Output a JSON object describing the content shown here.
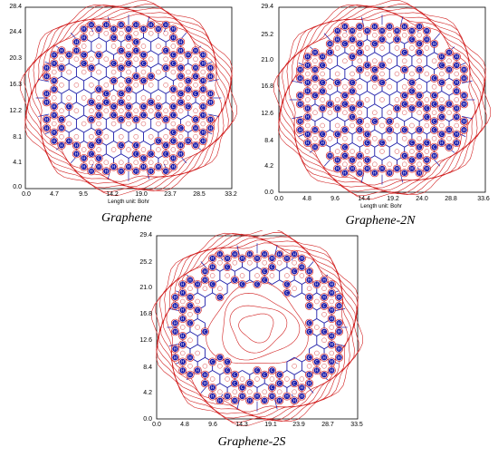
{
  "length_unit": "Length unit: Bohr",
  "atom_labels": {
    "carbon": "C",
    "hydrogen": "H",
    "nitrogen": "N",
    "sulfur": "S"
  },
  "colors": {
    "contour": "#d22020",
    "bond_path": "#1b1ba8",
    "atom_marker": "#1b1ba8",
    "atom_fill": "#ffffff"
  },
  "panels": [
    {
      "caption": "Graphene",
      "x_ticks": [
        "0.0",
        "4.7",
        "9.5",
        "14.2",
        "19.0",
        "23.7",
        "28.5",
        "33.2"
      ],
      "y_ticks": [
        "28.4",
        "24.4",
        "20.3",
        "16.3",
        "12.2",
        "8.1",
        "4.1",
        "0.0"
      ]
    },
    {
      "caption": "Graphene-2N",
      "x_ticks": [
        "0.0",
        "4.8",
        "9.6",
        "14.4",
        "19.2",
        "24.0",
        "28.8",
        "33.6"
      ],
      "y_ticks": [
        "29.4",
        "25.2",
        "21.0",
        "16.8",
        "12.6",
        "8.4",
        "4.2",
        "0.0"
      ]
    },
    {
      "caption": "Graphene-2S",
      "x_ticks": [
        "0.0",
        "4.8",
        "9.6",
        "14.3",
        "19.1",
        "23.9",
        "28.7",
        "33.5"
      ],
      "y_ticks": [
        "29.4",
        "25.2",
        "21.0",
        "16.8",
        "12.6",
        "8.4",
        "4.2",
        "0.0"
      ]
    }
  ]
}
